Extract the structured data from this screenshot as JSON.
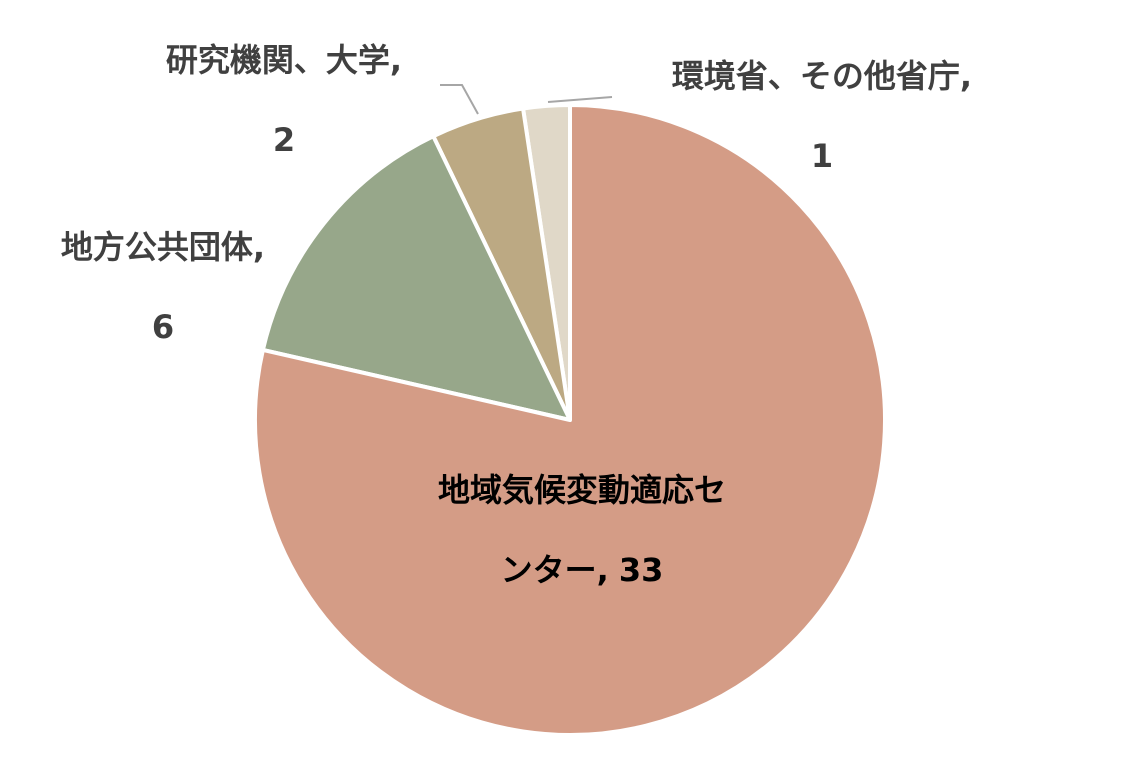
{
  "chart_data": {
    "type": "pie",
    "categories": [
      "地域気候変動適応センター,",
      "地方公共団体,",
      "研究機関、大学,",
      "環境省、その他省庁,"
    ],
    "values": [
      33,
      6,
      2,
      1
    ],
    "colors": [
      "#d49c86",
      "#97a78a",
      "#bca983",
      "#e0d8c8"
    ]
  }
}
